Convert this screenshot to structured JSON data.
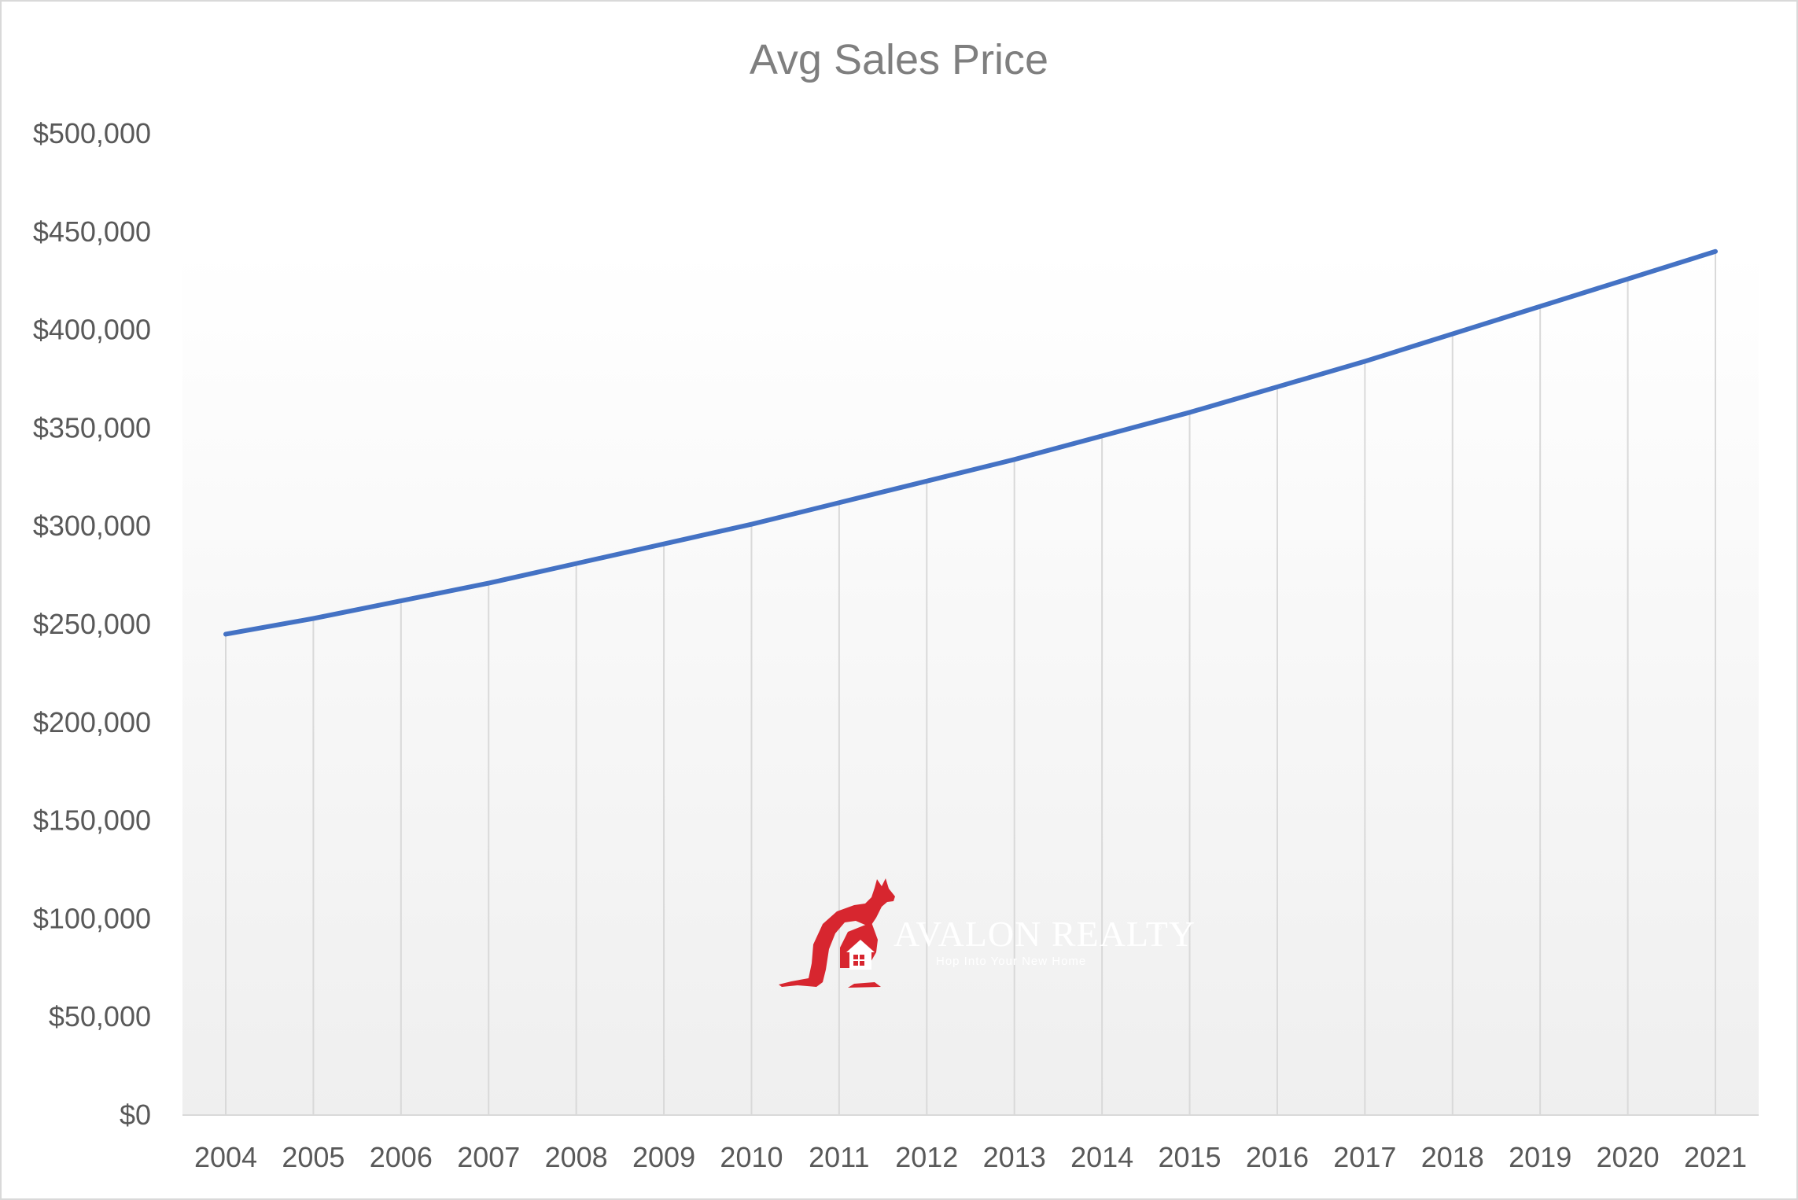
{
  "chart_data": {
    "type": "line",
    "title": "Avg Sales Price",
    "xlabel": "",
    "ylabel": "",
    "categories": [
      "2004",
      "2005",
      "2006",
      "2007",
      "2008",
      "2009",
      "2010",
      "2011",
      "2012",
      "2013",
      "2014",
      "2015",
      "2016",
      "2017",
      "2018",
      "2019",
      "2020",
      "2021"
    ],
    "series": [
      {
        "values": [
          245000,
          253000,
          262000,
          271000,
          281000,
          291000,
          301000,
          312000,
          323000,
          334000,
          346000,
          358000,
          371000,
          384000,
          398000,
          412000,
          426000,
          440000
        ],
        "color": "#4472c4"
      }
    ],
    "ylim": [
      0,
      500000
    ],
    "yticks": [
      "$0",
      "$50,000",
      "$100,000",
      "$150,000",
      "$200,000",
      "$250,000",
      "$300,000",
      "$350,000",
      "$400,000",
      "$450,000",
      "$500,000"
    ],
    "grid": "vertical drop lines from each point",
    "legend": "none"
  },
  "watermark": {
    "brand": "AVALON REALTY",
    "tagline": "Hop Into Your New Home",
    "registered": "®",
    "color": "#d7262f",
    "icon": "kangaroo-house-icon"
  }
}
